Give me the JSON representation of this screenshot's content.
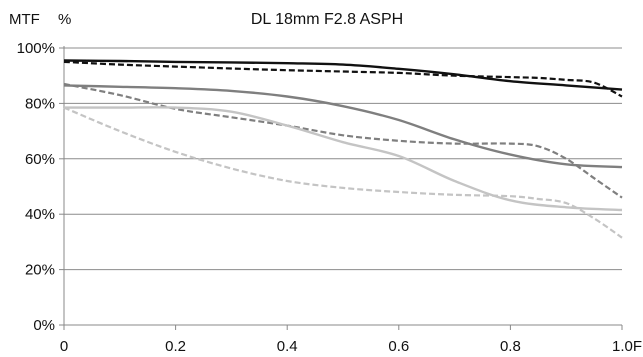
{
  "chart_data": {
    "type": "line",
    "title": "DL 18mm F2.8 ASPH",
    "ylabel": "MTF",
    "yunit": "%",
    "xlim": [
      0,
      1.0
    ],
    "ylim": [
      0,
      100
    ],
    "x_ticks": [
      "0",
      "0.2",
      "0.4",
      "0.6",
      "0.8",
      "1.0F"
    ],
    "y_ticks": [
      "0%",
      "20%",
      "40%",
      "60%",
      "80%",
      "100%"
    ],
    "grid": "horizontal",
    "colors": {
      "black": "#111111",
      "dark_gray": "#7f7f7f",
      "light_gray": "#c4c4c4",
      "axis": "#888888",
      "grid": "#8c8c8c"
    },
    "series": [
      {
        "style": "solid",
        "color": "#111111",
        "width": 2.4,
        "x": [
          0,
          0.1,
          0.2,
          0.3,
          0.4,
          0.5,
          0.6,
          0.7,
          0.8,
          0.9,
          1.0
        ],
        "y": [
          95.5,
          95.3,
          95.0,
          94.8,
          94.5,
          94.0,
          92.5,
          90.5,
          88.0,
          86.5,
          85.0
        ]
      },
      {
        "style": "dashed",
        "color": "#111111",
        "width": 2.2,
        "x": [
          0,
          0.1,
          0.2,
          0.3,
          0.4,
          0.5,
          0.6,
          0.7,
          0.8,
          0.85,
          0.9,
          0.95,
          1.0
        ],
        "y": [
          95.0,
          94.0,
          93.3,
          92.6,
          92.0,
          91.5,
          91.0,
          90.0,
          89.5,
          89.2,
          88.5,
          87.5,
          82.5
        ]
      },
      {
        "style": "solid",
        "color": "#7f7f7f",
        "width": 2.4,
        "x": [
          0,
          0.1,
          0.2,
          0.3,
          0.4,
          0.5,
          0.6,
          0.7,
          0.8,
          0.9,
          1.0
        ],
        "y": [
          86.5,
          86.0,
          85.5,
          84.5,
          82.5,
          79.0,
          74.0,
          67.0,
          61.5,
          58.0,
          57.0
        ]
      },
      {
        "style": "dashed",
        "color": "#7f7f7f",
        "width": 2.2,
        "x": [
          0,
          0.1,
          0.2,
          0.3,
          0.4,
          0.5,
          0.6,
          0.7,
          0.8,
          0.85,
          0.9,
          0.95,
          1.0
        ],
        "y": [
          87.0,
          83.0,
          78.0,
          75.0,
          72.0,
          68.5,
          66.5,
          65.5,
          65.5,
          64.5,
          60.0,
          53.0,
          46.0
        ]
      },
      {
        "style": "solid",
        "color": "#c4c4c4",
        "width": 2.4,
        "x": [
          0,
          0.1,
          0.2,
          0.3,
          0.4,
          0.5,
          0.6,
          0.7,
          0.8,
          0.9,
          1.0
        ],
        "y": [
          78.5,
          78.5,
          78.5,
          77.0,
          72.0,
          66.0,
          61.0,
          52.0,
          45.0,
          42.5,
          41.5
        ]
      },
      {
        "style": "dashed",
        "color": "#c4c4c4",
        "width": 2.2,
        "x": [
          0,
          0.1,
          0.2,
          0.3,
          0.4,
          0.5,
          0.6,
          0.7,
          0.8,
          0.85,
          0.9,
          0.95,
          1.0
        ],
        "y": [
          78.5,
          70.0,
          62.5,
          56.5,
          52.0,
          49.5,
          48.0,
          47.0,
          46.5,
          45.5,
          44.0,
          38.5,
          31.5
        ]
      }
    ]
  }
}
